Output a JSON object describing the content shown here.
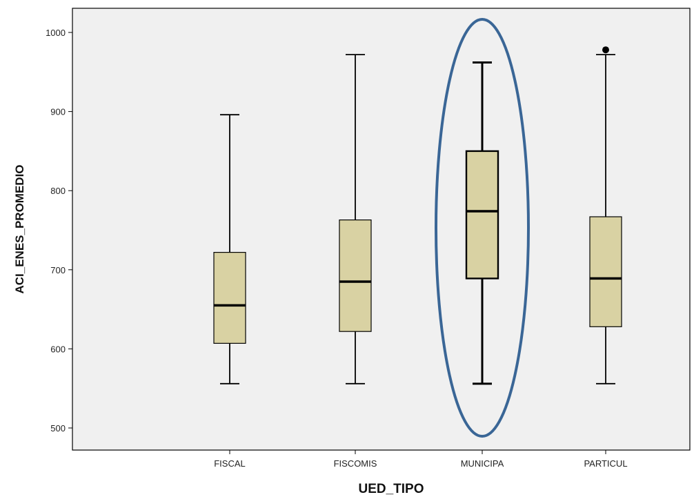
{
  "chart_data": {
    "type": "boxplot",
    "xlabel": "UED_TIPO",
    "ylabel": "ACI_ENES_PROMEDIO",
    "ylim": [
      470,
      1030
    ],
    "yticks": [
      500,
      600,
      700,
      800,
      900,
      1000
    ],
    "ytick_labels": [
      "500",
      "600",
      "700",
      "800",
      "900",
      "1000"
    ],
    "grid": false,
    "categories": [
      "FISCAL",
      "FISCOMIS",
      "MUNICIPA",
      "PARTICUL"
    ],
    "boxes": [
      {
        "category": "FISCAL",
        "whisker_low": 556,
        "q1": 607,
        "median": 655,
        "q3": 722,
        "whisker_high": 896,
        "outliers": []
      },
      {
        "category": "FISCOMIS",
        "whisker_low": 556,
        "q1": 622,
        "median": 685,
        "q3": 763,
        "whisker_high": 972,
        "outliers": []
      },
      {
        "category": "MUNICIPA",
        "whisker_low": 556,
        "q1": 689,
        "median": 774,
        "q3": 850,
        "whisker_high": 962,
        "outliers": []
      },
      {
        "category": "PARTICUL",
        "whisker_low": 556,
        "q1": 628,
        "median": 689,
        "q3": 767,
        "whisker_high": 972,
        "outliers": [
          978
        ]
      }
    ],
    "highlight": {
      "category": "MUNICIPA",
      "shape": "ellipse",
      "color": "#3a6696"
    },
    "colors": {
      "box_fill": "#d9d2a3",
      "plot_background": "#f0f0f0",
      "outlier": "#000000"
    }
  }
}
